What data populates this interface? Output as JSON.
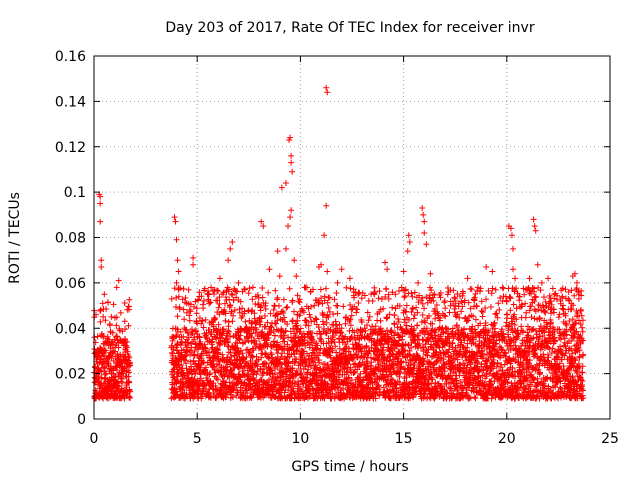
{
  "chart_data": {
    "type": "scatter",
    "title": "Day 203 of 2017, Rate Of TEC Index for receiver invr",
    "xlabel": "GPS time / hours",
    "ylabel": "ROTI / TECUs",
    "xlim": [
      0,
      25
    ],
    "ylim": [
      0,
      0.16
    ],
    "x_ticks": [
      0,
      5,
      10,
      15,
      20,
      25
    ],
    "x_tick_labels": [
      "0",
      "5",
      "10",
      "15",
      "20",
      "25"
    ],
    "y_ticks": [
      0,
      0.02,
      0.04,
      0.06,
      0.08,
      0.1,
      0.12,
      0.14,
      0.16
    ],
    "y_tick_labels": [
      "0",
      "0.02",
      "0.04",
      "0.06",
      "0.08",
      "0.1",
      "0.12",
      "0.14",
      "0.16"
    ],
    "grid": true,
    "marker": "+",
    "marker_color": "#ff0000",
    "series": [
      {
        "name": "ROTI",
        "segments": [
          {
            "x_start": 0.0,
            "x_end": 1.75,
            "typical_min": 0.005,
            "typical_max": 0.035
          },
          {
            "x_start": 3.75,
            "x_end": 23.7,
            "typical_min": 0.005,
            "typical_max": 0.04
          }
        ],
        "outliers": [
          {
            "x": 0.25,
            "y": 0.099
          },
          {
            "x": 0.3,
            "y": 0.098
          },
          {
            "x": 0.3,
            "y": 0.095
          },
          {
            "x": 0.3,
            "y": 0.087
          },
          {
            "x": 0.35,
            "y": 0.07
          },
          {
            "x": 0.35,
            "y": 0.067
          },
          {
            "x": 0.5,
            "y": 0.055
          },
          {
            "x": 1.1,
            "y": 0.058
          },
          {
            "x": 1.2,
            "y": 0.061
          },
          {
            "x": 3.9,
            "y": 0.089
          },
          {
            "x": 3.95,
            "y": 0.087
          },
          {
            "x": 4.0,
            "y": 0.079
          },
          {
            "x": 4.05,
            "y": 0.07
          },
          {
            "x": 4.1,
            "y": 0.065
          },
          {
            "x": 4.0,
            "y": 0.06
          },
          {
            "x": 4.1,
            "y": 0.057
          },
          {
            "x": 4.8,
            "y": 0.071
          },
          {
            "x": 4.8,
            "y": 0.068
          },
          {
            "x": 5.1,
            "y": 0.054
          },
          {
            "x": 5.5,
            "y": 0.055
          },
          {
            "x": 6.1,
            "y": 0.062
          },
          {
            "x": 6.5,
            "y": 0.07
          },
          {
            "x": 6.6,
            "y": 0.075
          },
          {
            "x": 6.7,
            "y": 0.078
          },
          {
            "x": 7.0,
            "y": 0.06
          },
          {
            "x": 7.7,
            "y": 0.058
          },
          {
            "x": 8.1,
            "y": 0.087
          },
          {
            "x": 8.2,
            "y": 0.085
          },
          {
            "x": 8.5,
            "y": 0.066
          },
          {
            "x": 8.9,
            "y": 0.074
          },
          {
            "x": 9.0,
            "y": 0.063
          },
          {
            "x": 9.1,
            "y": 0.102
          },
          {
            "x": 9.3,
            "y": 0.104
          },
          {
            "x": 9.45,
            "y": 0.123
          },
          {
            "x": 9.5,
            "y": 0.124
          },
          {
            "x": 9.55,
            "y": 0.116
          },
          {
            "x": 9.55,
            "y": 0.113
          },
          {
            "x": 9.6,
            "y": 0.109
          },
          {
            "x": 9.55,
            "y": 0.092
          },
          {
            "x": 9.5,
            "y": 0.089
          },
          {
            "x": 9.4,
            "y": 0.085
          },
          {
            "x": 9.3,
            "y": 0.075
          },
          {
            "x": 9.7,
            "y": 0.07
          },
          {
            "x": 9.8,
            "y": 0.063
          },
          {
            "x": 10.2,
            "y": 0.058
          },
          {
            "x": 10.5,
            "y": 0.056
          },
          {
            "x": 10.9,
            "y": 0.067
          },
          {
            "x": 11.0,
            "y": 0.068
          },
          {
            "x": 11.15,
            "y": 0.081
          },
          {
            "x": 11.25,
            "y": 0.146
          },
          {
            "x": 11.3,
            "y": 0.144
          },
          {
            "x": 11.25,
            "y": 0.094
          },
          {
            "x": 11.3,
            "y": 0.065
          },
          {
            "x": 11.8,
            "y": 0.06
          },
          {
            "x": 12.0,
            "y": 0.066
          },
          {
            "x": 12.4,
            "y": 0.062
          },
          {
            "x": 12.8,
            "y": 0.055
          },
          {
            "x": 13.5,
            "y": 0.052
          },
          {
            "x": 14.1,
            "y": 0.069
          },
          {
            "x": 14.2,
            "y": 0.066
          },
          {
            "x": 14.6,
            "y": 0.055
          },
          {
            "x": 15.0,
            "y": 0.065
          },
          {
            "x": 15.2,
            "y": 0.074
          },
          {
            "x": 15.25,
            "y": 0.081
          },
          {
            "x": 15.3,
            "y": 0.078
          },
          {
            "x": 15.7,
            "y": 0.06
          },
          {
            "x": 15.9,
            "y": 0.093
          },
          {
            "x": 15.95,
            "y": 0.09
          },
          {
            "x": 16.0,
            "y": 0.087
          },
          {
            "x": 16.0,
            "y": 0.082
          },
          {
            "x": 16.1,
            "y": 0.077
          },
          {
            "x": 16.3,
            "y": 0.064
          },
          {
            "x": 16.5,
            "y": 0.055
          },
          {
            "x": 17.0,
            "y": 0.052
          },
          {
            "x": 17.5,
            "y": 0.052
          },
          {
            "x": 18.1,
            "y": 0.062
          },
          {
            "x": 18.6,
            "y": 0.058
          },
          {
            "x": 19.0,
            "y": 0.067
          },
          {
            "x": 19.3,
            "y": 0.065
          },
          {
            "x": 19.8,
            "y": 0.052
          },
          {
            "x": 20.1,
            "y": 0.085
          },
          {
            "x": 20.2,
            "y": 0.084
          },
          {
            "x": 20.25,
            "y": 0.081
          },
          {
            "x": 20.3,
            "y": 0.075
          },
          {
            "x": 20.3,
            "y": 0.066
          },
          {
            "x": 20.4,
            "y": 0.062
          },
          {
            "x": 21.1,
            "y": 0.062
          },
          {
            "x": 21.3,
            "y": 0.088
          },
          {
            "x": 21.35,
            "y": 0.085
          },
          {
            "x": 21.4,
            "y": 0.083
          },
          {
            "x": 21.5,
            "y": 0.068
          },
          {
            "x": 21.7,
            "y": 0.06
          },
          {
            "x": 22.0,
            "y": 0.062
          },
          {
            "x": 22.3,
            "y": 0.055
          },
          {
            "x": 22.6,
            "y": 0.052
          },
          {
            "x": 23.0,
            "y": 0.056
          },
          {
            "x": 23.2,
            "y": 0.063
          },
          {
            "x": 23.3,
            "y": 0.064
          },
          {
            "x": 23.4,
            "y": 0.06
          },
          {
            "x": 23.5,
            "y": 0.055
          }
        ]
      }
    ]
  }
}
